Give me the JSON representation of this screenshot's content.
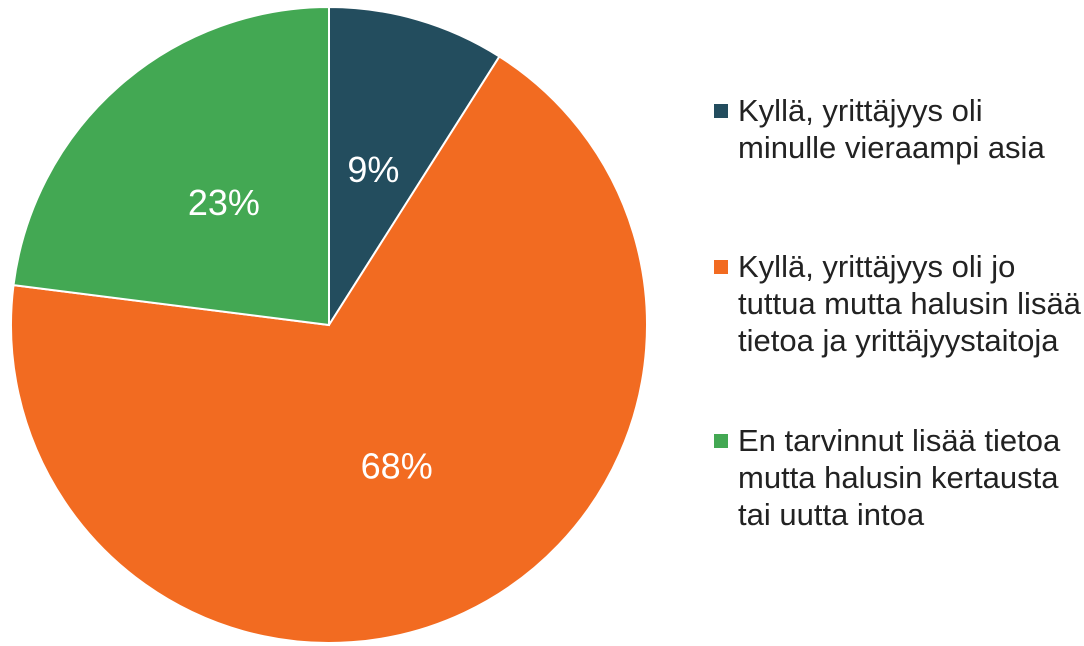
{
  "chart_data": {
    "type": "pie",
    "categories": [
      "Kyllä, yrittäjyys oli minulle vieraampi asia",
      "Kyllä, yrittäjyys oli jo tuttua mutta halusin lisää tietoa ja yrittäjyystaitoja",
      "En tarvinnut lisää tietoa mutta halusin kertausta tai uutta intoa"
    ],
    "values": [
      9,
      68,
      23
    ],
    "value_labels": [
      "9%",
      "68%",
      "23%"
    ],
    "colors": [
      "#234d5e",
      "#f26b21",
      "#43a853"
    ],
    "legend": "right"
  }
}
